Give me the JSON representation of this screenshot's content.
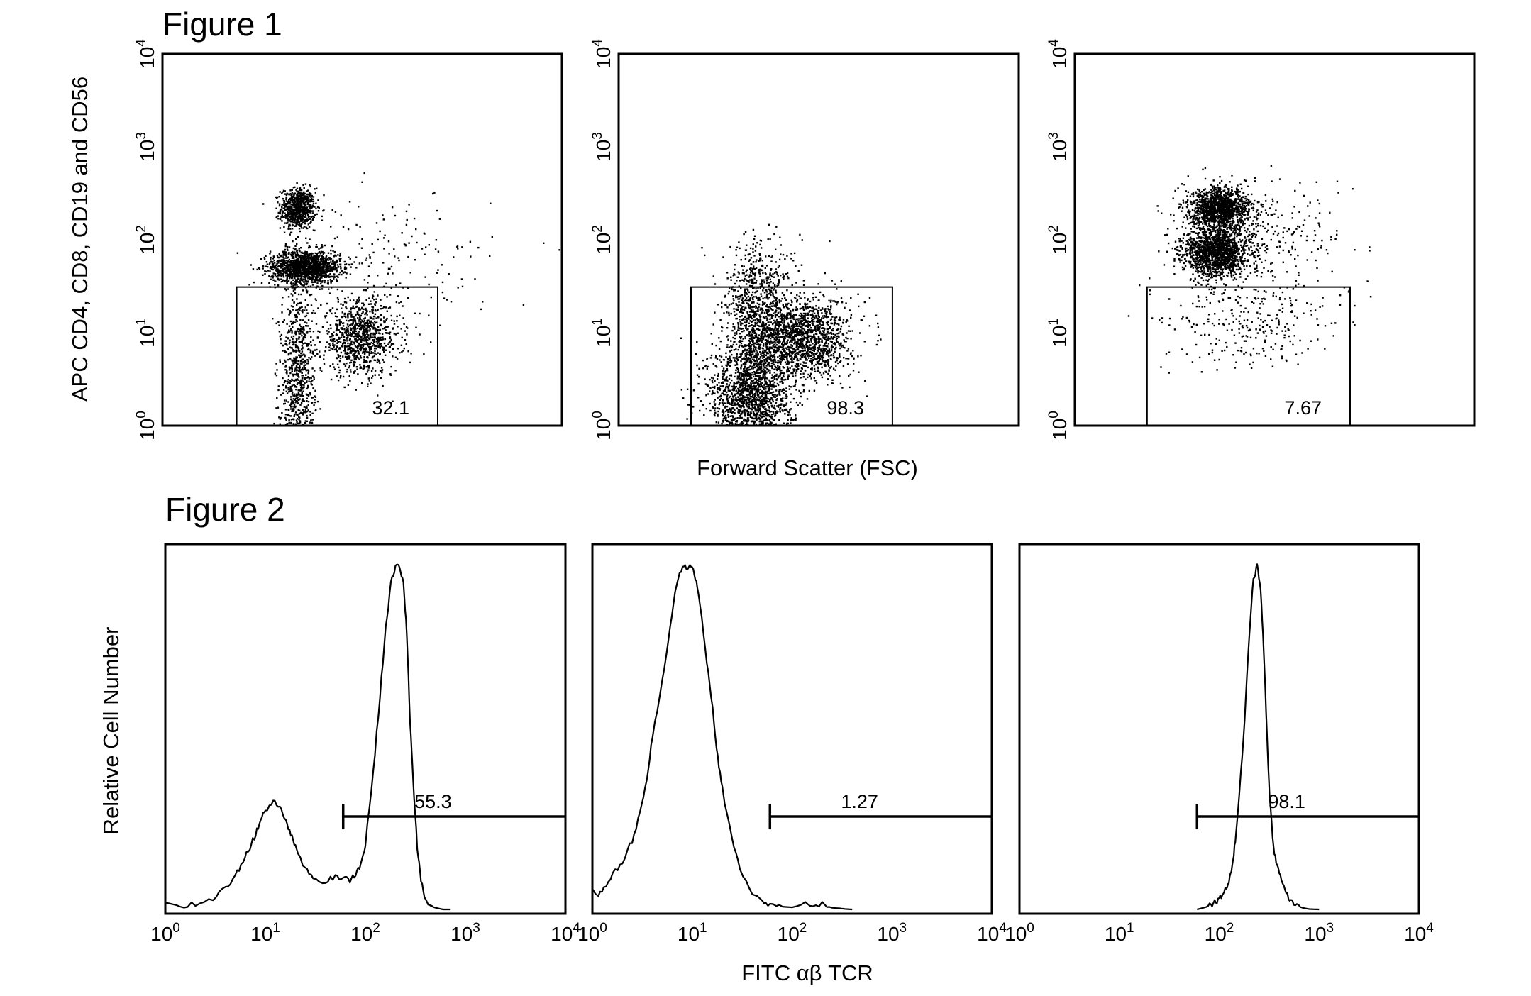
{
  "figure1": {
    "title": "Figure 1",
    "ylabel": "APC CD4, CD8, CD19 and CD56",
    "xlabel": "Forward Scatter (FSC)"
  },
  "figure2": {
    "title": "Figure 2",
    "ylabel": "Relative Cell Number",
    "xlabel": "FITC αβ TCR"
  },
  "chart_data": [
    {
      "type": "scatter",
      "panel": "Figure 1 - panel 1",
      "ylabel": "APC CD4, CD8, CD19 and CD56",
      "xlabel": "Forward Scatter (FSC)",
      "y_scale": "log",
      "ylim": [
        1,
        10000
      ],
      "y_ticks": [
        {
          "base": "10",
          "exp": "0"
        },
        {
          "base": "10",
          "exp": "1"
        },
        {
          "base": "10",
          "exp": "2"
        },
        {
          "base": "10",
          "exp": "3"
        },
        {
          "base": "10",
          "exp": "4"
        }
      ],
      "x_range": [
        0,
        1023
      ],
      "gate": {
        "x": [
          190,
          705
        ],
        "y": [
          1,
          31
        ],
        "percent": "32.1"
      },
      "clusters": [
        {
          "x": 345,
          "y": 220,
          "sx": 22,
          "sy": 0.11,
          "n": 700
        },
        {
          "x": 365,
          "y": 52,
          "sx": 45,
          "sy": 0.09,
          "n": 1400
        },
        {
          "x": 505,
          "y": 9,
          "sx": 50,
          "sy": 0.2,
          "n": 950
        },
        {
          "x": 345,
          "y": 3,
          "sx": 22,
          "sy": 0.55,
          "n": 850
        },
        {
          "x": 590,
          "y": 60,
          "sx": 130,
          "sy": 0.35,
          "n": 160
        }
      ]
    },
    {
      "type": "scatter",
      "panel": "Figure 1 - panel 2",
      "y_scale": "log",
      "ylim": [
        1,
        10000
      ],
      "y_ticks": [
        {
          "base": "10",
          "exp": "0"
        },
        {
          "base": "10",
          "exp": "1"
        },
        {
          "base": "10",
          "exp": "2"
        },
        {
          "base": "10",
          "exp": "3"
        },
        {
          "base": "10",
          "exp": "4"
        }
      ],
      "x_range": [
        0,
        1023
      ],
      "gate": {
        "x": [
          185,
          700
        ],
        "y": [
          1,
          31
        ],
        "percent": "98.3"
      },
      "clusters": [
        {
          "x": 335,
          "y": 2,
          "sx": 55,
          "sy": 0.3,
          "n": 1600
        },
        {
          "x": 470,
          "y": 9,
          "sx": 60,
          "sy": 0.22,
          "n": 1500
        },
        {
          "x": 350,
          "y": 12,
          "sx": 40,
          "sy": 0.4,
          "n": 900
        },
        {
          "x": 360,
          "y": 45,
          "sx": 55,
          "sy": 0.2,
          "n": 120
        }
      ]
    },
    {
      "type": "scatter",
      "panel": "Figure 1 - panel 3",
      "y_scale": "log",
      "ylim": [
        1,
        10000
      ],
      "y_ticks": [
        {
          "base": "10",
          "exp": "0"
        },
        {
          "base": "10",
          "exp": "1"
        },
        {
          "base": "10",
          "exp": "2"
        },
        {
          "base": "10",
          "exp": "3"
        },
        {
          "base": "10",
          "exp": "4"
        }
      ],
      "x_range": [
        0,
        1023
      ],
      "gate": {
        "x": [
          185,
          705
        ],
        "y": [
          1,
          31
        ],
        "percent": "7.67"
      },
      "clusters": [
        {
          "x": 370,
          "y": 220,
          "sx": 38,
          "sy": 0.11,
          "n": 1300
        },
        {
          "x": 360,
          "y": 75,
          "sx": 42,
          "sy": 0.13,
          "n": 1500
        },
        {
          "x": 470,
          "y": 130,
          "sx": 110,
          "sy": 0.25,
          "n": 260
        },
        {
          "x": 450,
          "y": 15,
          "sx": 110,
          "sy": 0.28,
          "n": 320
        }
      ]
    },
    {
      "type": "line",
      "panel": "Figure 2 - panel 1",
      "ylabel": "Relative Cell Number",
      "xlabel": "FITC αβ TCR",
      "x_scale": "log",
      "xlim": [
        1,
        10000
      ],
      "x_ticks": [
        {
          "base": "10",
          "exp": "0"
        },
        {
          "base": "10",
          "exp": "1"
        },
        {
          "base": "10",
          "exp": "2"
        },
        {
          "base": "10",
          "exp": "3"
        },
        {
          "base": "10",
          "exp": "4"
        }
      ],
      "ylim": [
        0,
        100
      ],
      "marker": {
        "x_start": 60,
        "x_end": 10000,
        "y": 27,
        "percent": "55.3"
      },
      "x": [
        1,
        1.4,
        2,
        3,
        4,
        5,
        6,
        7,
        8,
        9,
        10,
        12,
        14,
        16,
        18,
        20,
        25,
        30,
        40,
        50,
        60,
        70,
        80,
        90,
        100,
        120,
        140,
        160,
        180,
        200,
        220,
        240,
        260,
        280,
        300,
        330,
        360,
        400,
        450,
        500,
        600,
        700
      ],
      "y": [
        2,
        1,
        1.5,
        3,
        6,
        10,
        14,
        18,
        22,
        26,
        29,
        31,
        30,
        26,
        22,
        18,
        12,
        8.5,
        8,
        9.5,
        9,
        8.5,
        10,
        13,
        19,
        40,
        62,
        82,
        95,
        99.5,
        100,
        95,
        80,
        55,
        38,
        18,
        8,
        3,
        1,
        0.5,
        0,
        0
      ]
    },
    {
      "type": "line",
      "panel": "Figure 2 - panel 2",
      "x_scale": "log",
      "xlim": [
        1,
        10000
      ],
      "x_ticks": [
        {
          "base": "10",
          "exp": "0"
        },
        {
          "base": "10",
          "exp": "1"
        },
        {
          "base": "10",
          "exp": "2"
        },
        {
          "base": "10",
          "exp": "3"
        },
        {
          "base": "10",
          "exp": "4"
        }
      ],
      "ylim": [
        0,
        100
      ],
      "marker": {
        "x_start": 60,
        "x_end": 10000,
        "y": 27,
        "percent": "1.27"
      },
      "x": [
        1,
        1.1,
        1.3,
        1.6,
        2,
        2.5,
        3,
        3.5,
        4,
        5,
        6,
        7,
        8,
        9,
        10,
        11,
        12,
        14,
        16,
        18,
        20,
        25,
        30,
        40,
        50,
        60,
        80,
        100,
        150,
        200,
        250,
        300,
        350,
        400
      ],
      "y": [
        6,
        4,
        6,
        10,
        14,
        20,
        28,
        38,
        50,
        66,
        82,
        95,
        100,
        99,
        100,
        95,
        88,
        72,
        58,
        44,
        35,
        20,
        12,
        5,
        2.5,
        1.5,
        0.8,
        0.6,
        1.8,
        1.4,
        0.5,
        0.3,
        0.1,
        0
      ]
    },
    {
      "type": "line",
      "panel": "Figure 2 - panel 3",
      "x_scale": "log",
      "xlim": [
        1,
        10000
      ],
      "x_ticks": [
        {
          "base": "10",
          "exp": "0"
        },
        {
          "base": "10",
          "exp": "1"
        },
        {
          "base": "10",
          "exp": "2"
        },
        {
          "base": "10",
          "exp": "3"
        },
        {
          "base": "10",
          "exp": "4"
        }
      ],
      "ylim": [
        0,
        100
      ],
      "marker": {
        "x_start": 60,
        "x_end": 10000,
        "y": 27,
        "percent": "98.1"
      },
      "x": [
        60,
        70,
        80,
        90,
        100,
        110,
        120,
        130,
        140,
        150,
        160,
        180,
        200,
        220,
        240,
        260,
        280,
        300,
        320,
        350,
        380,
        420,
        470,
        520,
        600,
        700,
        800,
        1000
      ],
      "y": [
        0,
        0.5,
        1,
        2,
        3,
        4.5,
        6.5,
        10,
        16,
        24,
        34,
        55,
        80,
        96,
        100,
        93,
        75,
        52,
        33,
        18,
        13,
        8,
        4.5,
        2.5,
        1,
        0.4,
        0.1,
        0
      ]
    }
  ]
}
